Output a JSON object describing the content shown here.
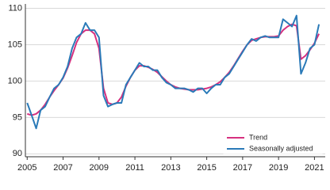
{
  "chart_data": {
    "type": "line",
    "x": [
      2005,
      2005.25,
      2005.5,
      2005.75,
      2006,
      2006.25,
      2006.5,
      2006.75,
      2007,
      2007.25,
      2007.5,
      2007.75,
      2008,
      2008.25,
      2008.5,
      2008.75,
      2009,
      2009.25,
      2009.5,
      2009.75,
      2010,
      2010.25,
      2010.5,
      2010.75,
      2011,
      2011.25,
      2011.5,
      2011.75,
      2012,
      2012.25,
      2012.5,
      2012.75,
      2013,
      2013.25,
      2013.5,
      2013.75,
      2014,
      2014.25,
      2014.5,
      2014.75,
      2015,
      2015.25,
      2015.5,
      2015.75,
      2016,
      2016.25,
      2016.5,
      2016.75,
      2017,
      2017.25,
      2017.5,
      2017.75,
      2018,
      2018.25,
      2018.5,
      2018.75,
      2019,
      2019.25,
      2019.5,
      2019.75,
      2020,
      2020.25,
      2020.5,
      2020.75,
      2021,
      2021.25
    ],
    "series": [
      {
        "name": "Trend",
        "color": "#d6307f",
        "values": [
          95.5,
          95.3,
          95.5,
          96,
          96.8,
          97.8,
          98.7,
          99.5,
          100.4,
          101.8,
          103.5,
          105.3,
          106.5,
          107,
          107,
          106.5,
          104.5,
          99,
          97,
          96.8,
          97,
          97.8,
          99.3,
          100.5,
          101.5,
          102.1,
          102.1,
          101.9,
          101.6,
          101.2,
          100.6,
          100,
          99.5,
          99.2,
          99,
          98.9,
          98.8,
          98.8,
          98.8,
          98.9,
          99,
          99.2,
          99.5,
          99.9,
          100.5,
          101.2,
          102.1,
          103.1,
          104.1,
          105,
          105.6,
          105.8,
          106,
          106.1,
          106.1,
          106.1,
          106.2,
          107,
          107.5,
          107.8,
          107.6,
          103,
          103.5,
          104.3,
          105.2,
          106.5
        ]
      },
      {
        "name": "Seasonally adjusted",
        "color": "#2a7ab8",
        "values": [
          97,
          95.3,
          93.5,
          96,
          96.5,
          97.8,
          99,
          99.5,
          100.5,
          102,
          104.5,
          106,
          106.5,
          108,
          107,
          107,
          106,
          98,
          96.5,
          96.8,
          97,
          97,
          99.5,
          100.5,
          101.5,
          102.5,
          102,
          102,
          101.5,
          101.5,
          100.5,
          99.8,
          99.5,
          99,
          99,
          99,
          98.8,
          98.5,
          99,
          99,
          98.3,
          99,
          99.5,
          99.5,
          100.5,
          101,
          102,
          103,
          104,
          105,
          105.8,
          105.5,
          106,
          106.2,
          106,
          106,
          106,
          108.5,
          108,
          107.5,
          109,
          101,
          102.5,
          104.5,
          105,
          107.8
        ]
      }
    ],
    "xlim": [
      2004.9,
      2021.6
    ],
    "xticks": [
      2005,
      2007,
      2009,
      2011,
      2013,
      2015,
      2017,
      2019,
      2021
    ],
    "ylim": [
      89.6,
      110.6
    ],
    "yticks": [
      90,
      95,
      100,
      105,
      110
    ],
    "grid": true,
    "legend": "lower right"
  }
}
